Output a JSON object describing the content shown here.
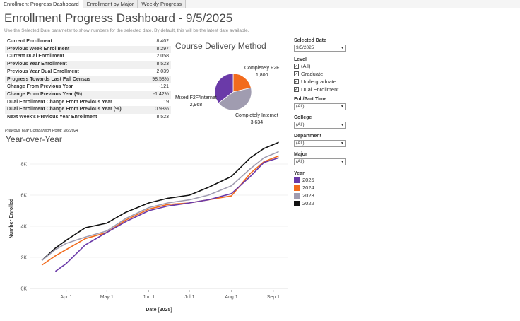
{
  "tabs": [
    {
      "label": "Enrollment Progress Dashboard",
      "active": true
    },
    {
      "label": "Enrollment by Major",
      "active": false
    },
    {
      "label": "Weekly Progress",
      "active": false
    }
  ],
  "header": {
    "title": "Enrollment Progress Dashboard - 9/5/2025",
    "subtitle": "Use the Selected Date parameter to show numbers for the selected date. By default, this will be the latest date available."
  },
  "kpis": [
    {
      "label": "Current Enrollment",
      "value": "8,402"
    },
    {
      "label": "Previous Week Enrollment",
      "value": "8,297"
    },
    {
      "label": "Current Dual Enrollment",
      "value": "2,058"
    },
    {
      "label": "Previous Year Enrollment",
      "value": "8,523"
    },
    {
      "label": "Previous Year Dual Enrollment",
      "value": "2,039"
    },
    {
      "label": "Progress Towards Last Fall Census",
      "value": "98.58%"
    },
    {
      "label": "Change From Previous Year",
      "value": "-121"
    },
    {
      "label": "Change From Previous Year (%)",
      "value": "-1.42%"
    },
    {
      "label": "Dual Enrollment Change From Previous Year",
      "value": "19"
    },
    {
      "label": "Dual Enrollment Change From Previous Year (%)",
      "value": "0.93%"
    },
    {
      "label": "Next Week's Previous Year Enrollment",
      "value": "8,523"
    }
  ],
  "kpi_note": "Previous Year Comparison Point: 9/6/2024",
  "pie": {
    "title": "Course Delivery Method",
    "slices": [
      {
        "name": "Completely F2F",
        "value": 1800,
        "value_label": "1,800",
        "color": "#f26b1d"
      },
      {
        "name": "Completely Internet",
        "value": 3634,
        "value_label": "3,634",
        "color": "#a09cb0"
      },
      {
        "name": "Mixed F2F/Internet",
        "value": 2968,
        "value_label": "2,968",
        "color": "#6a3aa8"
      }
    ]
  },
  "yoy": {
    "title": "Year-over-Year"
  },
  "filters": {
    "selected_date": {
      "label": "Selected Date",
      "value": "9/5/2025"
    },
    "level": {
      "label": "Level",
      "options": [
        {
          "label": "(All)",
          "checked": true
        },
        {
          "label": "Graduate",
          "checked": true
        },
        {
          "label": "Undergraduate",
          "checked": true
        },
        {
          "label": "Dual Enrollment",
          "checked": true
        }
      ]
    },
    "full_part_time": {
      "label": "Full/Part Time",
      "value": "(All)"
    },
    "college": {
      "label": "College",
      "value": "(All)"
    },
    "department": {
      "label": "Department",
      "value": "(All)"
    },
    "major": {
      "label": "Major",
      "value": "(All)"
    }
  },
  "year_legend": {
    "label": "Year",
    "items": [
      {
        "label": "2025",
        "color": "#6a3aa8"
      },
      {
        "label": "2024",
        "color": "#f26b1d"
      },
      {
        "label": "2023",
        "color": "#a09cb0"
      },
      {
        "label": "2022",
        "color": "#111111"
      }
    ]
  },
  "chart_data": {
    "type": "line",
    "xlabel": "Date [2025]",
    "ylabel": "Number Enrolled",
    "x_ticks": [
      "Apr 1",
      "May 1",
      "Jun 1",
      "Jul 1",
      "Aug 1",
      "Sep 1"
    ],
    "y_ticks": [
      "0K",
      "2K",
      "4K",
      "6K",
      "8K"
    ],
    "ylim": [
      0,
      9000
    ],
    "grid": "horizontal",
    "x": [
      "Mar 14",
      "Mar 24",
      "Apr 1",
      "Apr 15",
      "May 1",
      "May 15",
      "Jun 1",
      "Jun 15",
      "Jul 1",
      "Jul 15",
      "Aug 1",
      "Aug 15",
      "Aug 25",
      "Sep 5"
    ],
    "series": [
      {
        "name": "2025",
        "color": "#6a3aa8",
        "values": [
          null,
          1100,
          1600,
          2800,
          3600,
          4300,
          5000,
          5300,
          5500,
          5700,
          6100,
          7200,
          8100,
          8400
        ]
      },
      {
        "name": "2024",
        "color": "#f26b1d",
        "values": [
          1500,
          2100,
          2500,
          3200,
          3600,
          4400,
          5100,
          5400,
          5500,
          5700,
          5950,
          7400,
          8150,
          8523
        ]
      },
      {
        "name": "2023",
        "color": "#a09cb0",
        "values": [
          1800,
          2500,
          2900,
          3300,
          3700,
          4500,
          5200,
          5500,
          5700,
          6000,
          6600,
          7700,
          8400,
          8800
        ]
      },
      {
        "name": "2022",
        "color": "#111111",
        "values": [
          1800,
          2600,
          3100,
          3900,
          4200,
          4900,
          5500,
          5800,
          6000,
          6500,
          7200,
          8400,
          9000,
          9400
        ]
      }
    ]
  }
}
